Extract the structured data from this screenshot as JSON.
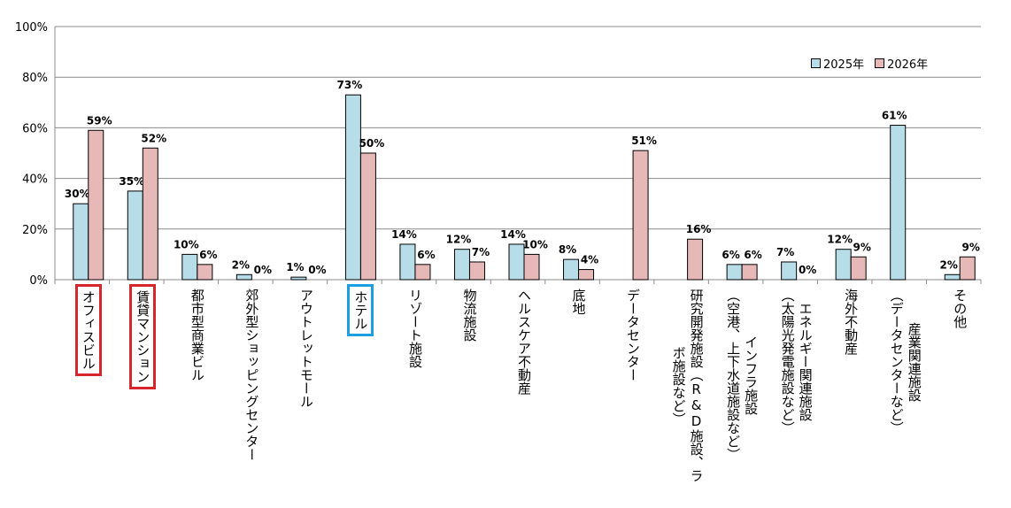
{
  "chart_data": {
    "type": "bar",
    "title": "",
    "xlabel": "",
    "ylabel": "",
    "ylim": [
      0,
      100
    ],
    "yticks": [
      "0%",
      "20%",
      "40%",
      "60%",
      "80%",
      "100%"
    ],
    "grid": true,
    "legend_position": "top-right",
    "categories": [
      "オフィスビル",
      "賃貸マンション",
      "都市型商業ビル",
      "郊外型ショッピングセンター",
      "アウトレットモール",
      "ホテル",
      "リゾート施設",
      "物流施設",
      "ヘルスケア不動産",
      "底地",
      "データセンター",
      "研究開発施設（R&D施設、ラ\nボ施設など）",
      "インフラ施設\n（空港、上下水道施設など）",
      "エネルギー関連施設\n（太陽光発電施設など）",
      "海外不動産",
      "産業関連施設\n（データセンターなど）",
      "その他"
    ],
    "highlights": [
      {
        "category_index": 0,
        "color": "#d7262b"
      },
      {
        "category_index": 1,
        "color": "#d7262b"
      },
      {
        "category_index": 5,
        "color": "#1b9fe0"
      }
    ],
    "series": [
      {
        "name": "2025年",
        "color": "#b7dde8",
        "values": [
          30,
          35,
          10,
          2,
          1,
          73,
          14,
          12,
          14,
          8,
          null,
          null,
          6,
          7,
          12,
          61,
          2
        ]
      },
      {
        "name": "2026年",
        "color": "#e6b9b8",
        "values": [
          59,
          52,
          6,
          0,
          0,
          50,
          6,
          7,
          10,
          4,
          51,
          16,
          6,
          0,
          9,
          null,
          9
        ]
      }
    ]
  }
}
